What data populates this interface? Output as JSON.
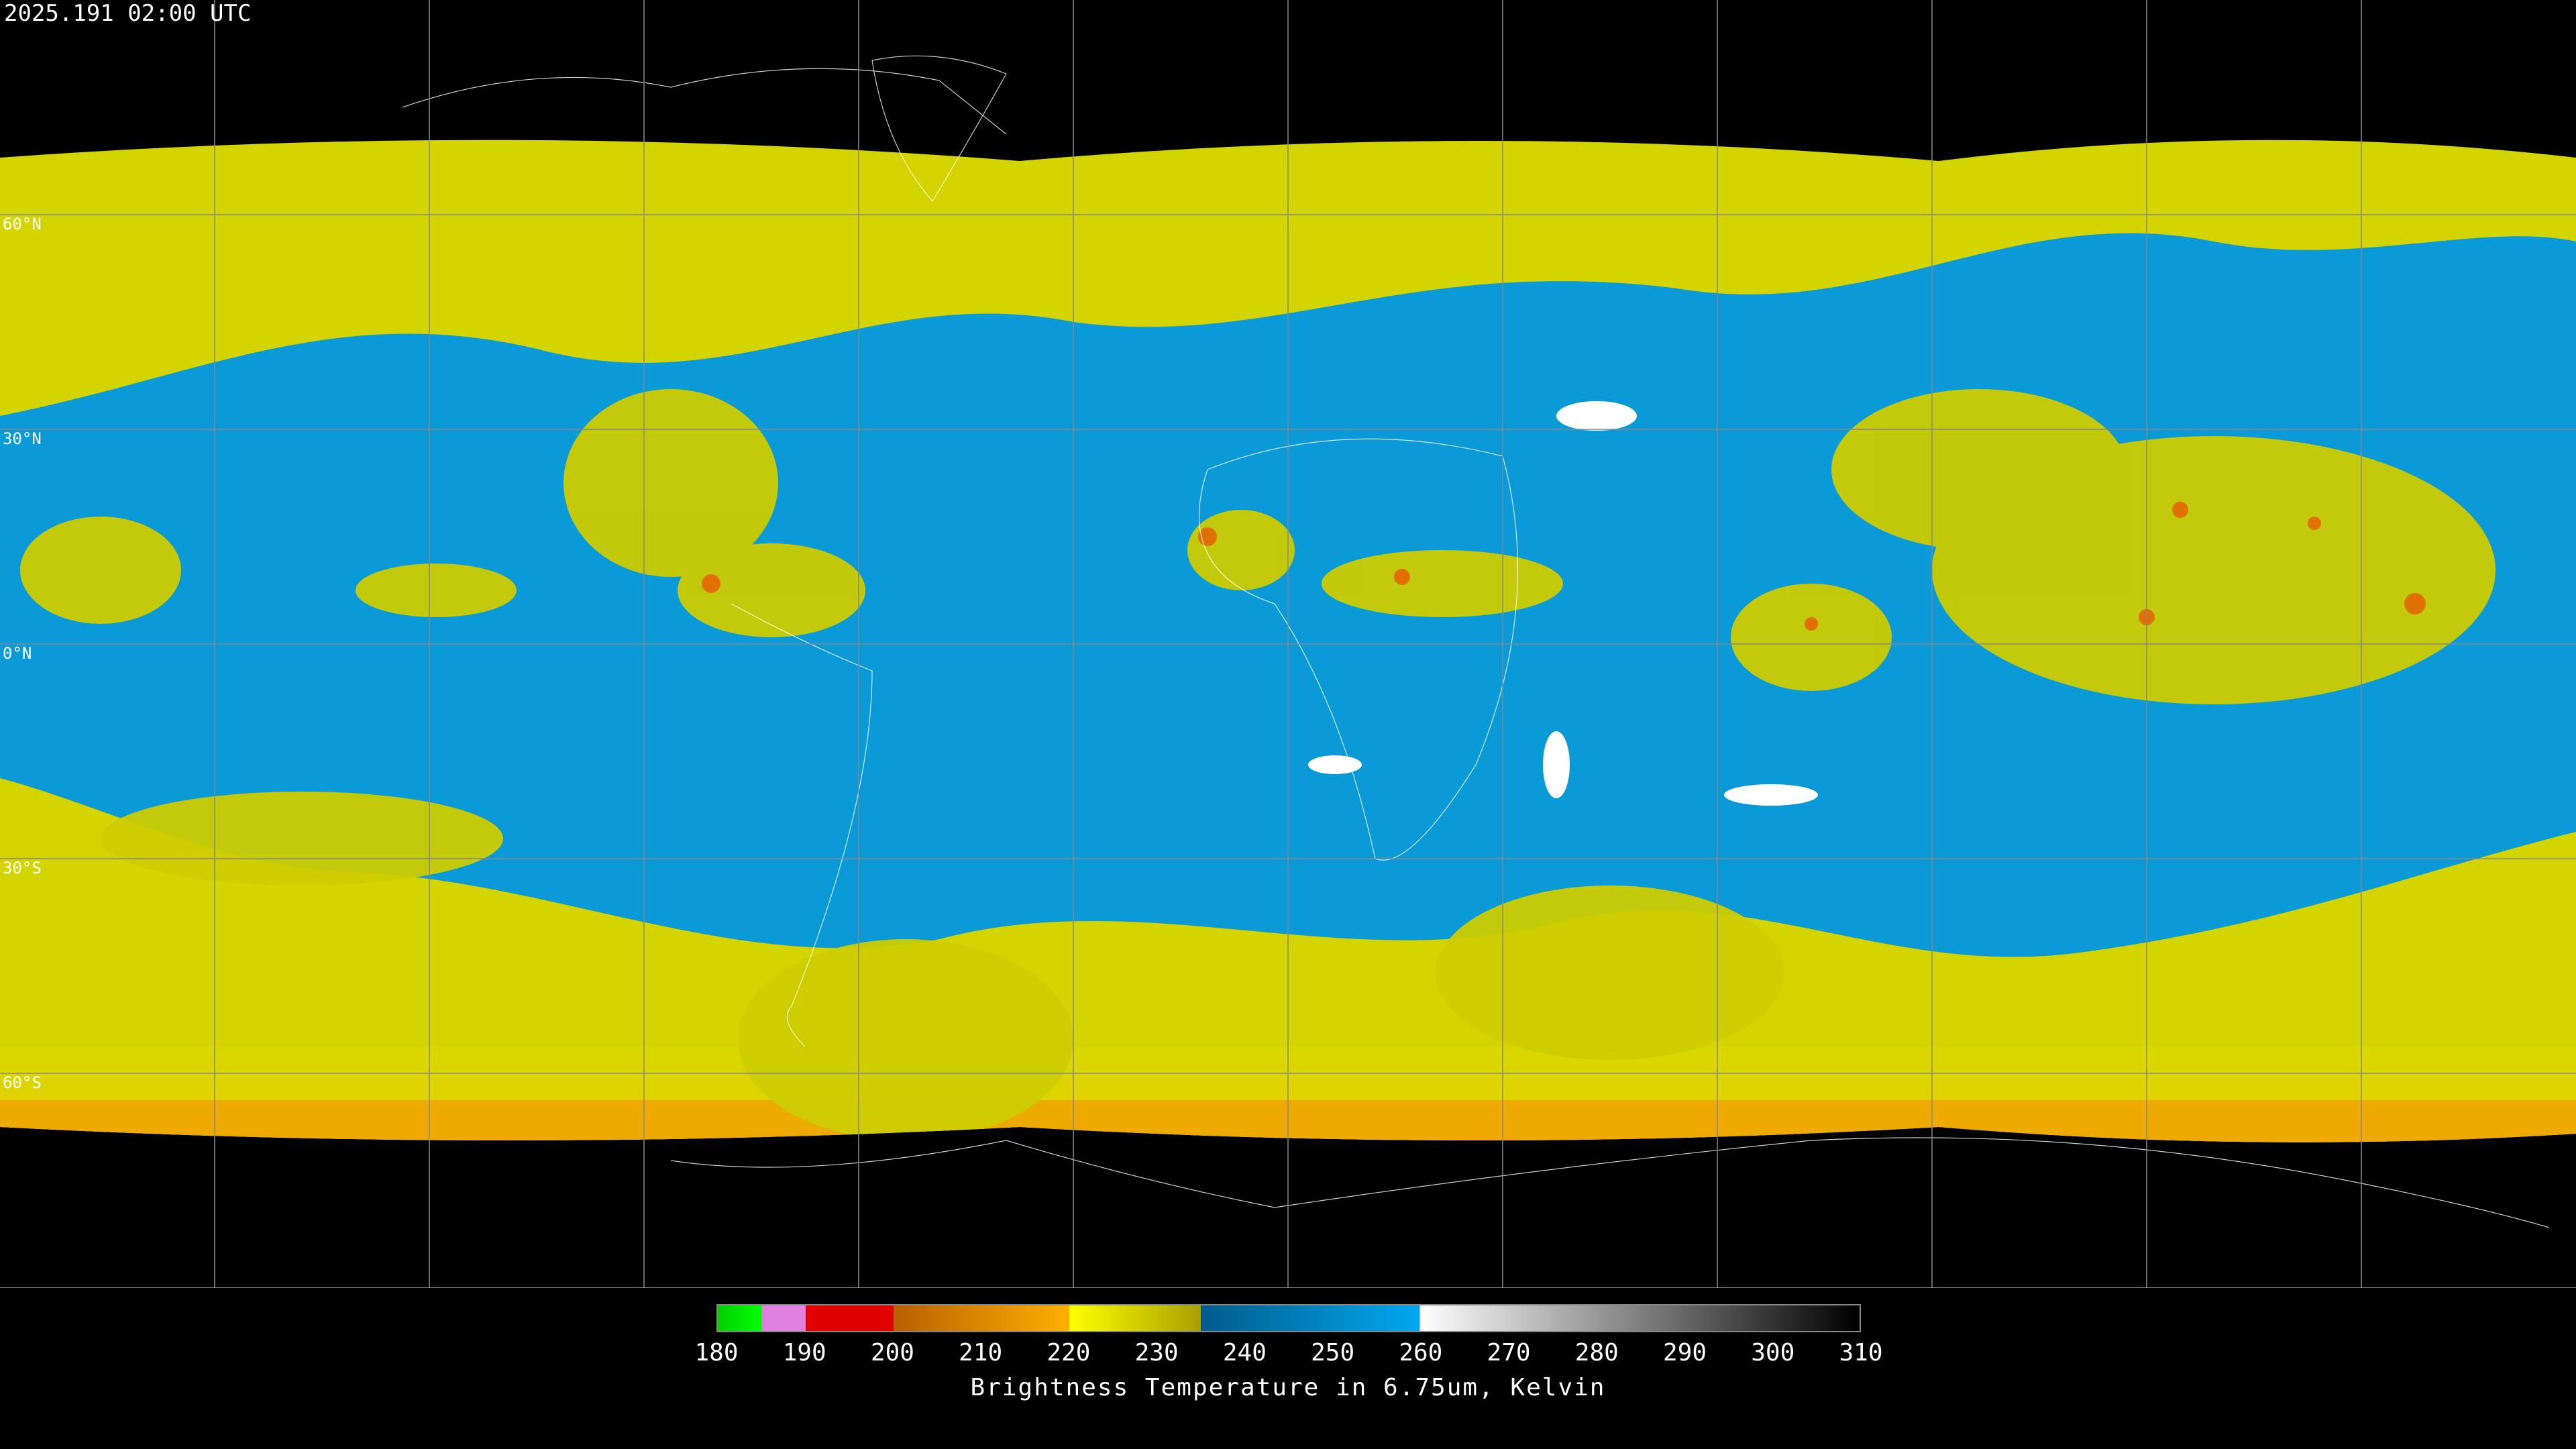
{
  "header": {
    "timestamp": "2025.191 02:00 UTC"
  },
  "map": {
    "lat_labels": [
      "60°N",
      "30°N",
      "0°N",
      "30°S",
      "60°S"
    ]
  },
  "colorbar": {
    "ticks": [
      180,
      190,
      200,
      210,
      220,
      230,
      240,
      250,
      260,
      270,
      280,
      290,
      300,
      310
    ],
    "label": "Brightness Temperature in 6.75um, Kelvin"
  }
}
